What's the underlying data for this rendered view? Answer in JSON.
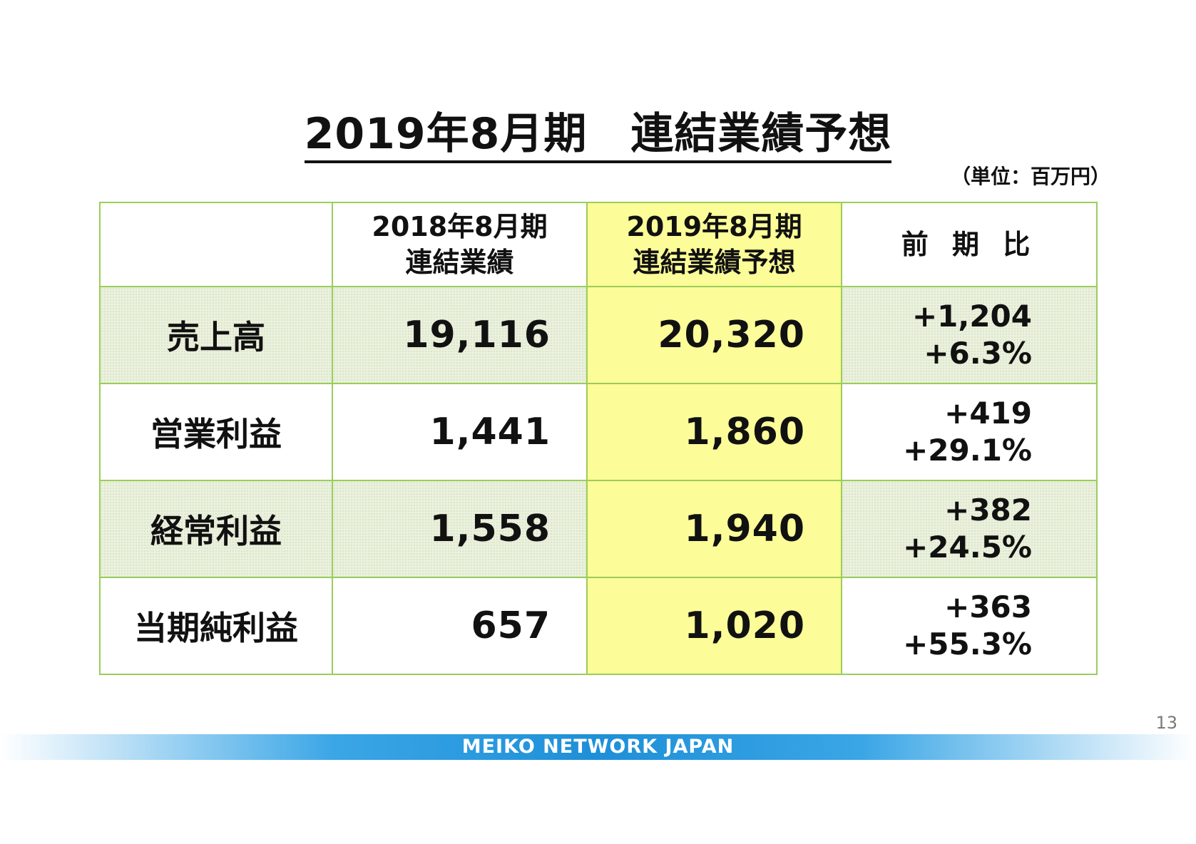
{
  "title": "2019年8月期　連結業績予想",
  "unit_note": "（単位：百万円）",
  "table": {
    "headers": [
      {
        "line1": "",
        "line2": ""
      },
      {
        "line1": "2018年8月期",
        "line2": "連結業績"
      },
      {
        "line1": "2019年8月期",
        "line2": "連結業績予想"
      },
      {
        "line1": "前 期 比",
        "line2": ""
      }
    ],
    "rows": [
      {
        "label": "売上高",
        "fy2018": "19,116",
        "fy2019": "20,320",
        "diff": "+1,204",
        "pct": "+6.3%"
      },
      {
        "label": "営業利益",
        "fy2018": "1,441",
        "fy2019": "1,860",
        "diff": "+419",
        "pct": "+29.1%"
      },
      {
        "label": "経常利益",
        "fy2018": "1,558",
        "fy2019": "1,940",
        "diff": "+382",
        "pct": "+24.5%"
      },
      {
        "label": "当期純利益",
        "fy2018": "657",
        "fy2019": "1,020",
        "diff": "+363",
        "pct": "+55.3%"
      }
    ]
  },
  "page_number": "13",
  "footer_brand": "MEIKO NETWORK JAPAN",
  "colors": {
    "border": "#9acd5a",
    "forecast_highlight": "#fcfc98",
    "shaded_row": "#eaf1dc",
    "footer_blue": "#1e8fd8"
  }
}
